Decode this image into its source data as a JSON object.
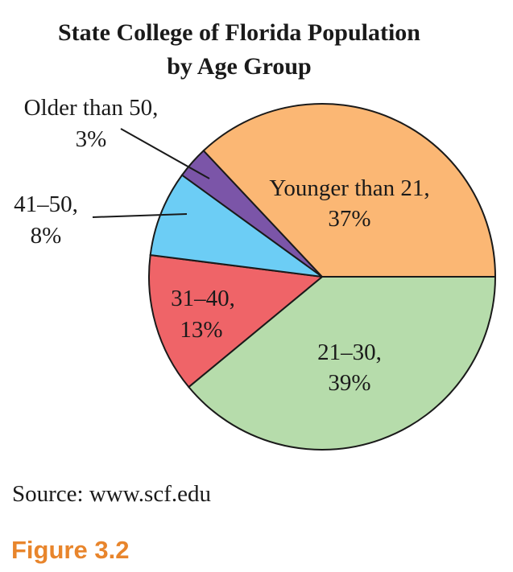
{
  "chart_data": {
    "type": "pie",
    "title": [
      "State College of Florida Population",
      "by Age Group"
    ],
    "slices": [
      {
        "category": "Younger than 21,",
        "value": 37,
        "value_label": "37%",
        "color": "#fbb774"
      },
      {
        "category": "21–30,",
        "value": 39,
        "value_label": "39%",
        "color": "#b6dcab"
      },
      {
        "category": "31–40,",
        "value": 13,
        "value_label": "13%",
        "color": "#ef6468"
      },
      {
        "category": "41–50,",
        "value": 8,
        "value_label": "8%",
        "color": "#6ccdf5"
      },
      {
        "category": "Older than 50,",
        "value": 3,
        "value_label": "3%",
        "color": "#7b55a8"
      }
    ]
  },
  "source": "Source: www.scf.edu",
  "figure_label": "Figure 3.2"
}
